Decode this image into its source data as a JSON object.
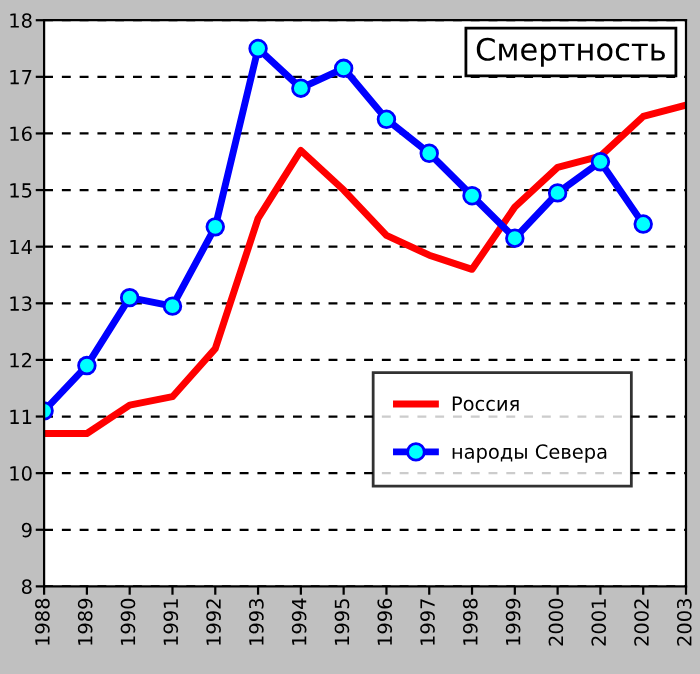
{
  "chart_data": {
    "type": "line",
    "title": "Смертность",
    "categories": [
      "1988",
      "1989",
      "1990",
      "1991",
      "1992",
      "1993",
      "1994",
      "1995",
      "1996",
      "1997",
      "1998",
      "1999",
      "2000",
      "2001",
      "2002",
      "2003"
    ],
    "series": [
      {
        "name": "Россия",
        "color": "#ff0000",
        "marker": "none",
        "values": [
          10.7,
          10.7,
          11.2,
          11.35,
          12.2,
          14.5,
          15.7,
          15.0,
          14.2,
          13.85,
          13.6,
          14.7,
          15.4,
          15.6,
          16.3,
          16.5
        ]
      },
      {
        "name": "народы Севера",
        "color": "#0000ff",
        "marker": "circle",
        "values": [
          11.1,
          11.9,
          13.1,
          12.95,
          14.35,
          17.5,
          16.8,
          17.15,
          16.25,
          15.65,
          14.9,
          14.15,
          14.95,
          15.5,
          14.4,
          null
        ]
      }
    ],
    "ylim": [
      8,
      18
    ],
    "yticks": [
      8,
      9,
      10,
      11,
      12,
      13,
      14,
      15,
      16,
      17,
      18
    ],
    "grid": "y",
    "legend": "bottom right",
    "line_style": "solid"
  }
}
